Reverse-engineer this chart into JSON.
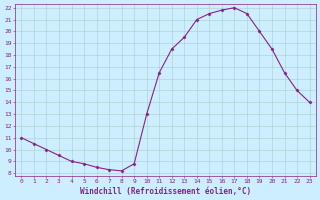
{
  "hours": [
    0,
    1,
    2,
    3,
    4,
    5,
    6,
    7,
    8,
    9,
    10,
    11,
    12,
    13,
    14,
    15,
    16,
    17,
    18,
    19,
    20,
    21,
    22,
    23
  ],
  "values": [
    11.0,
    10.5,
    10.0,
    9.5,
    9.0,
    8.8,
    8.5,
    8.3,
    8.2,
    8.8,
    13.0,
    16.5,
    18.5,
    19.5,
    21.0,
    21.5,
    21.8,
    22.0,
    21.5,
    20.0,
    18.5,
    16.5,
    15.0,
    14.0
  ],
  "line_color": "#882288",
  "marker": "D",
  "marker_size": 1.5,
  "marker_linewidth": 0.5,
  "line_width": 0.8,
  "bg_color": "#cceeff",
  "grid_color": "#aacccc",
  "axis_label_color": "#882288",
  "tick_color": "#882288",
  "xlabel": "Windchill (Refroidissement éolien,°C)",
  "xlabel_fontsize": 5.5,
  "tick_fontsize": 4.5,
  "xlim_min": -0.5,
  "xlim_max": 23.5,
  "ylim_min": 7.8,
  "ylim_max": 22.3,
  "yticks": [
    8,
    9,
    10,
    11,
    12,
    13,
    14,
    15,
    16,
    17,
    18,
    19,
    20,
    21,
    22
  ],
  "xticks": [
    0,
    1,
    2,
    3,
    4,
    5,
    6,
    7,
    8,
    9,
    10,
    11,
    12,
    13,
    14,
    15,
    16,
    17,
    18,
    19,
    20,
    21,
    22,
    23
  ]
}
